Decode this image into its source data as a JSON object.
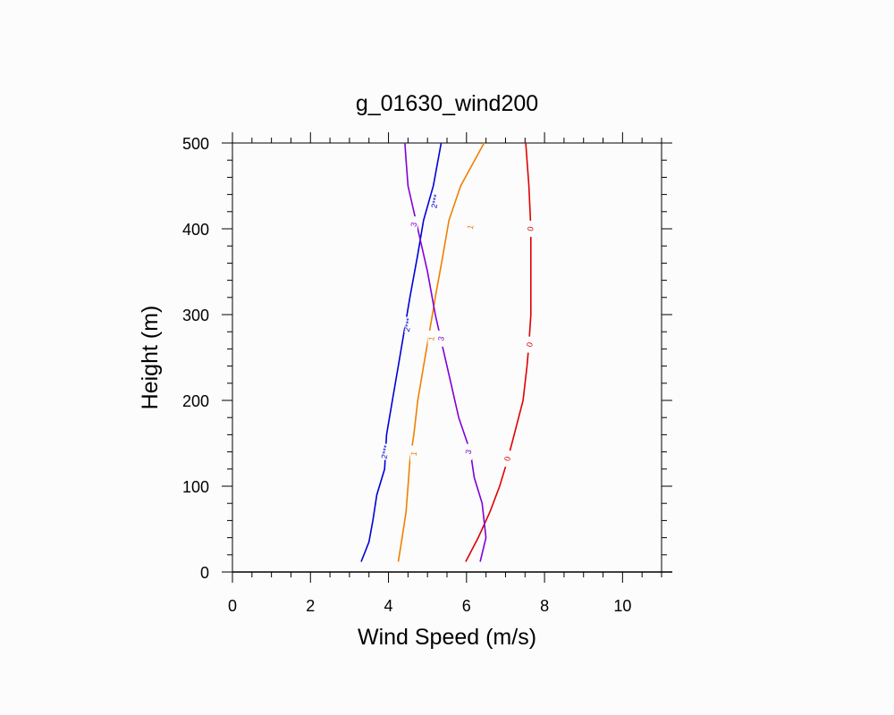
{
  "chart_data": {
    "type": "line",
    "title": "g_01630_wind200",
    "xlabel": "Wind Speed (m/s)",
    "ylabel": "Height (m)",
    "xlim": [
      0,
      11
    ],
    "ylim": [
      0,
      500
    ],
    "x_ticks": [
      0,
      2,
      4,
      6,
      8,
      10
    ],
    "y_ticks": [
      0,
      100,
      200,
      300,
      400,
      500
    ],
    "grid": false,
    "series": [
      {
        "name": "0",
        "label": "0",
        "color": "#e00000",
        "points": [
          [
            5.98,
            12
          ],
          [
            6.3,
            40
          ],
          [
            6.6,
            70
          ],
          [
            6.85,
            100
          ],
          [
            7.05,
            130
          ],
          [
            7.25,
            165
          ],
          [
            7.45,
            200
          ],
          [
            7.55,
            240
          ],
          [
            7.6,
            265
          ],
          [
            7.65,
            300
          ],
          [
            7.65,
            350
          ],
          [
            7.65,
            400
          ],
          [
            7.6,
            450
          ],
          [
            7.52,
            500
          ]
        ],
        "label_positions": [
          [
            7.05,
            132
          ],
          [
            7.62,
            265
          ],
          [
            7.64,
            400
          ]
        ]
      },
      {
        "name": "1",
        "label": "1",
        "color": "#f08000",
        "points": [
          [
            4.25,
            12
          ],
          [
            4.35,
            40
          ],
          [
            4.45,
            70
          ],
          [
            4.5,
            100
          ],
          [
            4.55,
            130
          ],
          [
            4.65,
            160
          ],
          [
            4.75,
            200
          ],
          [
            4.9,
            240
          ],
          [
            5.05,
            280
          ],
          [
            5.2,
            320
          ],
          [
            5.4,
            370
          ],
          [
            5.55,
            410
          ],
          [
            5.85,
            450
          ],
          [
            6.45,
            500
          ]
        ],
        "label_positions": [
          [
            4.65,
            138
          ],
          [
            5.1,
            272
          ],
          [
            6.1,
            402
          ]
        ]
      },
      {
        "name": "2***",
        "label": "2***",
        "color": "#0000d8",
        "points": [
          [
            3.3,
            12
          ],
          [
            3.5,
            35
          ],
          [
            3.6,
            60
          ],
          [
            3.7,
            90
          ],
          [
            3.9,
            120
          ],
          [
            3.95,
            160
          ],
          [
            4.1,
            200
          ],
          [
            4.25,
            240
          ],
          [
            4.4,
            280
          ],
          [
            4.55,
            320
          ],
          [
            4.75,
            370
          ],
          [
            4.9,
            410
          ],
          [
            5.15,
            450
          ],
          [
            5.35,
            500
          ]
        ],
        "label_positions": [
          [
            3.92,
            140
          ],
          [
            4.5,
            288
          ],
          [
            5.2,
            432
          ]
        ]
      },
      {
        "name": "3",
        "label": "3",
        "color": "#8000d8",
        "points": [
          [
            6.35,
            12
          ],
          [
            6.5,
            40
          ],
          [
            6.4,
            80
          ],
          [
            6.2,
            110
          ],
          [
            6.1,
            140
          ],
          [
            5.8,
            180
          ],
          [
            5.6,
            220
          ],
          [
            5.4,
            260
          ],
          [
            5.2,
            300
          ],
          [
            5.0,
            350
          ],
          [
            4.75,
            400
          ],
          [
            4.5,
            450
          ],
          [
            4.45,
            480
          ],
          [
            4.42,
            500
          ]
        ],
        "label_positions": [
          [
            6.05,
            140
          ],
          [
            5.35,
            272
          ],
          [
            4.65,
            405
          ]
        ]
      }
    ]
  }
}
